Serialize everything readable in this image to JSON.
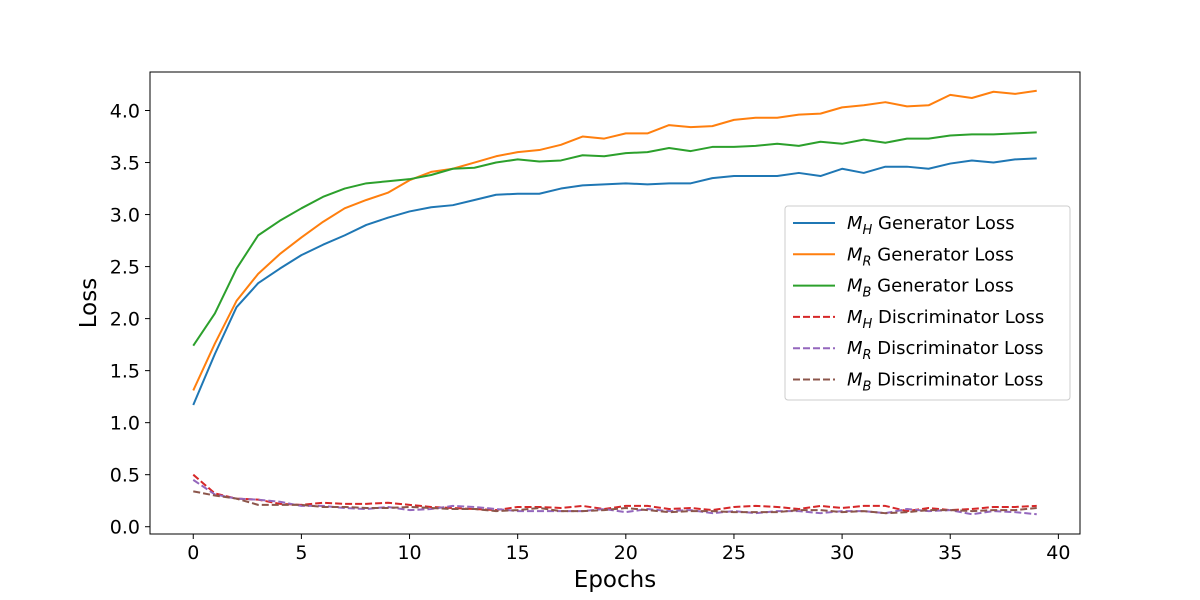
{
  "chart_data": {
    "type": "line",
    "title": "",
    "xlabel": "Epochs",
    "ylabel": "Loss",
    "xlim": [
      -2,
      41
    ],
    "ylim": [
      -0.07,
      4.37
    ],
    "xticks": [
      0,
      5,
      10,
      15,
      20,
      25,
      30,
      35,
      40
    ],
    "xtick_labels": [
      "0",
      "5",
      "10",
      "15",
      "20",
      "25",
      "30",
      "35",
      "40"
    ],
    "yticks": [
      0.0,
      0.5,
      1.0,
      1.5,
      2.0,
      2.5,
      3.0,
      3.5,
      4.0
    ],
    "ytick_labels": [
      "0.0",
      "0.5",
      "1.0",
      "1.5",
      "2.0",
      "2.5",
      "3.0",
      "3.5",
      "4.0"
    ],
    "grid": false,
    "legend_position": "center-right",
    "x": [
      0,
      1,
      2,
      3,
      4,
      5,
      6,
      7,
      8,
      9,
      10,
      11,
      12,
      13,
      14,
      15,
      16,
      17,
      18,
      19,
      20,
      21,
      22,
      23,
      24,
      25,
      26,
      27,
      28,
      29,
      30,
      31,
      32,
      33,
      34,
      35,
      36,
      37,
      38,
      39
    ],
    "series": [
      {
        "name_base": "M",
        "name_sub": "H",
        "name_suffix": " Generator Loss",
        "color": "#1f77b4",
        "dash": "solid",
        "values": [
          1.17,
          1.66,
          2.11,
          2.34,
          2.48,
          2.61,
          2.71,
          2.8,
          2.9,
          2.97,
          3.03,
          3.07,
          3.09,
          3.14,
          3.19,
          3.2,
          3.2,
          3.25,
          3.28,
          3.29,
          3.3,
          3.29,
          3.3,
          3.3,
          3.35,
          3.37,
          3.37,
          3.37,
          3.4,
          3.37,
          3.44,
          3.4,
          3.46,
          3.46,
          3.44,
          3.49,
          3.52,
          3.5,
          3.53,
          3.54
        ]
      },
      {
        "name_base": "M",
        "name_sub": "R",
        "name_suffix": " Generator Loss",
        "color": "#ff7f0e",
        "dash": "solid",
        "values": [
          1.31,
          1.76,
          2.17,
          2.43,
          2.62,
          2.78,
          2.93,
          3.06,
          3.14,
          3.21,
          3.33,
          3.41,
          3.44,
          3.5,
          3.56,
          3.6,
          3.62,
          3.67,
          3.75,
          3.73,
          3.78,
          3.78,
          3.86,
          3.84,
          3.85,
          3.91,
          3.93,
          3.93,
          3.96,
          3.97,
          4.03,
          4.05,
          4.08,
          4.04,
          4.05,
          4.15,
          4.12,
          4.18,
          4.16,
          4.19
        ]
      },
      {
        "name_base": "M",
        "name_sub": "B",
        "name_suffix": " Generator Loss",
        "color": "#2ca02c",
        "dash": "solid",
        "values": [
          1.74,
          2.05,
          2.48,
          2.8,
          2.94,
          3.06,
          3.17,
          3.25,
          3.3,
          3.32,
          3.34,
          3.38,
          3.44,
          3.45,
          3.5,
          3.53,
          3.51,
          3.52,
          3.57,
          3.56,
          3.59,
          3.6,
          3.64,
          3.61,
          3.65,
          3.65,
          3.66,
          3.68,
          3.66,
          3.7,
          3.68,
          3.72,
          3.69,
          3.73,
          3.73,
          3.76,
          3.77,
          3.77,
          3.78,
          3.79
        ]
      },
      {
        "name_base": "M",
        "name_sub": "H",
        "name_suffix": " Discriminator Loss",
        "color": "#d62728",
        "dash": "dashed",
        "values": [
          0.5,
          0.32,
          0.27,
          0.26,
          0.22,
          0.21,
          0.23,
          0.22,
          0.22,
          0.23,
          0.21,
          0.19,
          0.18,
          0.17,
          0.16,
          0.19,
          0.19,
          0.18,
          0.2,
          0.17,
          0.2,
          0.2,
          0.17,
          0.18,
          0.16,
          0.19,
          0.2,
          0.19,
          0.17,
          0.2,
          0.18,
          0.2,
          0.2,
          0.15,
          0.18,
          0.16,
          0.17,
          0.19,
          0.19,
          0.2
        ]
      },
      {
        "name_base": "M",
        "name_sub": "R",
        "name_suffix": " Discriminator Loss",
        "color": "#9467bd",
        "dash": "dashed",
        "values": [
          0.45,
          0.31,
          0.27,
          0.26,
          0.24,
          0.2,
          0.2,
          0.18,
          0.17,
          0.19,
          0.16,
          0.17,
          0.2,
          0.19,
          0.17,
          0.15,
          0.15,
          0.15,
          0.15,
          0.17,
          0.14,
          0.17,
          0.15,
          0.16,
          0.13,
          0.15,
          0.13,
          0.15,
          0.15,
          0.13,
          0.15,
          0.15,
          0.13,
          0.17,
          0.15,
          0.16,
          0.12,
          0.15,
          0.14,
          0.12
        ]
      },
      {
        "name_base": "M",
        "name_sub": "B",
        "name_suffix": " Discriminator Loss",
        "color": "#8c564b",
        "dash": "dashed",
        "values": [
          0.34,
          0.3,
          0.27,
          0.21,
          0.21,
          0.21,
          0.19,
          0.19,
          0.18,
          0.18,
          0.19,
          0.18,
          0.17,
          0.17,
          0.15,
          0.16,
          0.18,
          0.15,
          0.15,
          0.16,
          0.18,
          0.16,
          0.14,
          0.15,
          0.15,
          0.14,
          0.14,
          0.14,
          0.16,
          0.16,
          0.14,
          0.15,
          0.13,
          0.14,
          0.16,
          0.16,
          0.15,
          0.16,
          0.16,
          0.18
        ]
      }
    ]
  }
}
